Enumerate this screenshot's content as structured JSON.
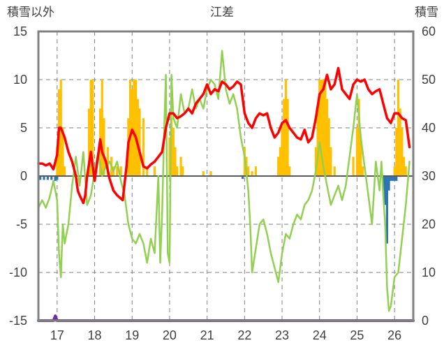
{
  "chart_data": {
    "type": "line",
    "title": "江差",
    "y_left_label": "積雪以外",
    "y_right_label": "積雪",
    "x_tick_labels": [
      "17",
      "18",
      "19",
      "20",
      "21",
      "22",
      "23",
      "24",
      "25",
      "26"
    ],
    "x_range": [
      16.5,
      26.5
    ],
    "y_left_ticks": [
      "15",
      "10",
      "5",
      "0",
      "-5",
      "-10",
      "-15"
    ],
    "y_left_range": [
      -15,
      15
    ],
    "y_right_ticks": [
      "60",
      "50",
      "40",
      "30",
      "20",
      "10",
      "0"
    ],
    "y_right_range": [
      0,
      60
    ],
    "grid": "dashed-horizontal-and-vertical",
    "colors": {
      "red_series": "#ff0000",
      "green_series": "#92d050",
      "orange_bars": "#ffc000",
      "blue_bars": "#2e75b6",
      "purple_series": "#7030a0",
      "frame": "#808080",
      "grid": "#808080"
    },
    "series": [
      {
        "color": "#ff0000",
        "axis": "left",
        "points": [
          [
            16.5,
            1.3
          ],
          [
            16.6,
            1.3
          ],
          [
            16.7,
            1.1
          ],
          [
            16.8,
            1.3
          ],
          [
            16.9,
            0.7
          ],
          [
            17.0,
            2.2
          ],
          [
            17.05,
            5.0
          ],
          [
            17.1,
            5.0
          ],
          [
            17.2,
            4.0
          ],
          [
            17.3,
            2.5
          ],
          [
            17.4,
            1.5
          ],
          [
            17.5,
            0.0
          ],
          [
            17.55,
            -1.5
          ],
          [
            17.6,
            -2.0
          ],
          [
            17.7,
            -2.8
          ],
          [
            17.75,
            -2.0
          ],
          [
            17.8,
            0.0
          ],
          [
            17.9,
            2.5
          ],
          [
            18.0,
            -0.5
          ],
          [
            18.15,
            3.8
          ],
          [
            18.2,
            2.5
          ],
          [
            18.3,
            1.5
          ],
          [
            18.4,
            -0.3
          ],
          [
            18.5,
            -1.5
          ],
          [
            18.6,
            -2.0
          ],
          [
            18.75,
            -2.5
          ],
          [
            18.85,
            1.0
          ],
          [
            18.9,
            3.5
          ],
          [
            19.0,
            4.8
          ],
          [
            19.1,
            4.0
          ],
          [
            19.2,
            2.5
          ],
          [
            19.3,
            1.0
          ],
          [
            19.4,
            0.8
          ],
          [
            19.5,
            1.2
          ],
          [
            19.6,
            1.5
          ],
          [
            19.8,
            2.5
          ],
          [
            19.9,
            5.0
          ],
          [
            20.0,
            6.5
          ],
          [
            20.1,
            6.5
          ],
          [
            20.2,
            6.0
          ],
          [
            20.3,
            6.2
          ],
          [
            20.4,
            6.5
          ],
          [
            20.5,
            7.0
          ],
          [
            20.6,
            6.5
          ],
          [
            20.7,
            7.5
          ],
          [
            20.8,
            8.0
          ],
          [
            20.9,
            8.5
          ],
          [
            21.0,
            9.5
          ],
          [
            21.1,
            8.5
          ],
          [
            21.2,
            9.0
          ],
          [
            21.3,
            8.8
          ],
          [
            21.4,
            9.8
          ],
          [
            21.5,
            9.5
          ],
          [
            21.6,
            9.0
          ],
          [
            21.7,
            9.3
          ],
          [
            21.8,
            9.8
          ],
          [
            21.9,
            9.5
          ],
          [
            22.0,
            6.5
          ],
          [
            22.1,
            5.5
          ],
          [
            22.2,
            5.0
          ],
          [
            22.3,
            6.0
          ],
          [
            22.4,
            6.5
          ],
          [
            22.5,
            6.3
          ],
          [
            22.6,
            6.5
          ],
          [
            22.7,
            5.0
          ],
          [
            22.8,
            4.0
          ],
          [
            22.9,
            4.5
          ],
          [
            23.0,
            5.5
          ],
          [
            23.1,
            5.8
          ],
          [
            23.2,
            5.0
          ],
          [
            23.3,
            4.5
          ],
          [
            23.4,
            4.0
          ],
          [
            23.5,
            3.8
          ],
          [
            23.6,
            4.8
          ],
          [
            23.7,
            3.5
          ],
          [
            23.8,
            4.0
          ],
          [
            23.9,
            6.0
          ],
          [
            24.0,
            8.5
          ],
          [
            24.1,
            9.0
          ],
          [
            24.2,
            10.5
          ],
          [
            24.3,
            9.0
          ],
          [
            24.4,
            9.5
          ],
          [
            24.5,
            11.2
          ],
          [
            24.6,
            9.0
          ],
          [
            24.7,
            8.5
          ],
          [
            24.8,
            8.0
          ],
          [
            24.9,
            9.5
          ],
          [
            25.0,
            10.0
          ],
          [
            25.1,
            9.8
          ],
          [
            25.2,
            10.0
          ],
          [
            25.3,
            9.0
          ],
          [
            25.4,
            8.5
          ],
          [
            25.5,
            8.8
          ],
          [
            25.6,
            9.0
          ],
          [
            25.7,
            7.5
          ],
          [
            25.8,
            6.0
          ],
          [
            25.9,
            5.5
          ],
          [
            26.0,
            6.5
          ],
          [
            26.1,
            6.5
          ],
          [
            26.2,
            6.0
          ],
          [
            26.3,
            5.8
          ],
          [
            26.4,
            3.0
          ]
        ]
      },
      {
        "color": "#92d050",
        "axis": "left",
        "points": [
          [
            16.5,
            -3.3
          ],
          [
            16.6,
            -2.5
          ],
          [
            16.7,
            -3.3
          ],
          [
            16.8,
            -2.2
          ],
          [
            16.9,
            -0.5
          ],
          [
            17.0,
            -2.5
          ],
          [
            17.05,
            -8.0
          ],
          [
            17.1,
            -10.5
          ],
          [
            17.15,
            -5.0
          ],
          [
            17.2,
            -7.0
          ],
          [
            17.3,
            -5.0
          ],
          [
            17.4,
            -1.0
          ],
          [
            17.5,
            2.0
          ],
          [
            17.6,
            -1.0
          ],
          [
            17.7,
            2.5
          ],
          [
            17.8,
            -3.0
          ],
          [
            17.9,
            -2.0
          ],
          [
            18.0,
            0.5
          ],
          [
            18.1,
            2.5
          ],
          [
            18.2,
            0.0
          ],
          [
            18.3,
            1.0
          ],
          [
            18.4,
            1.5
          ],
          [
            18.5,
            0.5
          ],
          [
            18.6,
            1.5
          ],
          [
            18.7,
            -0.5
          ],
          [
            18.8,
            -2.0
          ],
          [
            18.9,
            -5.0
          ],
          [
            19.0,
            -6.5
          ],
          [
            19.1,
            -7.0
          ],
          [
            19.2,
            -6.0
          ],
          [
            19.3,
            -7.0
          ],
          [
            19.4,
            -9.0
          ],
          [
            19.5,
            -6.5
          ],
          [
            19.6,
            -8.0
          ],
          [
            19.7,
            0.0
          ],
          [
            19.75,
            -9.0
          ],
          [
            19.8,
            -4.0
          ],
          [
            19.85,
            4.0
          ],
          [
            19.9,
            10.5
          ],
          [
            19.95,
            -8.0
          ],
          [
            20.0,
            -9.0
          ],
          [
            20.05,
            10.5
          ],
          [
            20.1,
            6.0
          ],
          [
            20.2,
            5.0
          ],
          [
            20.3,
            8.5
          ],
          [
            20.4,
            6.5
          ],
          [
            20.5,
            7.0
          ],
          [
            20.6,
            9.0
          ],
          [
            20.7,
            7.0
          ],
          [
            20.8,
            8.0
          ],
          [
            20.9,
            7.0
          ],
          [
            21.0,
            9.0
          ],
          [
            21.1,
            10.0
          ],
          [
            21.2,
            9.5
          ],
          [
            21.3,
            8.0
          ],
          [
            21.4,
            13.0
          ],
          [
            21.5,
            9.0
          ],
          [
            21.6,
            7.5
          ],
          [
            21.7,
            8.5
          ],
          [
            21.8,
            7.0
          ],
          [
            21.9,
            4.0
          ],
          [
            22.0,
            2.0
          ],
          [
            22.1,
            -1.5
          ],
          [
            22.15,
            -5.0
          ],
          [
            22.2,
            -10.0
          ],
          [
            22.3,
            -7.5
          ],
          [
            22.4,
            -5.0
          ],
          [
            22.5,
            -4.5
          ],
          [
            22.6,
            -6.0
          ],
          [
            22.7,
            -8.0
          ],
          [
            22.8,
            -9.5
          ],
          [
            22.9,
            -11.0
          ],
          [
            23.0,
            -8.0
          ],
          [
            23.1,
            -6.0
          ],
          [
            23.2,
            -6.5
          ],
          [
            23.3,
            -5.0
          ],
          [
            23.4,
            -4.0
          ],
          [
            23.5,
            -4.5
          ],
          [
            23.6,
            -3.0
          ],
          [
            23.7,
            -2.5
          ],
          [
            23.8,
            -1.5
          ],
          [
            23.9,
            0.5
          ],
          [
            24.0,
            3.5
          ],
          [
            24.1,
            1.0
          ],
          [
            24.2,
            -1.0
          ],
          [
            24.3,
            -3.0
          ],
          [
            24.4,
            -2.0
          ],
          [
            24.5,
            -1.0
          ],
          [
            24.6,
            -2.5
          ],
          [
            24.7,
            -1.0
          ],
          [
            24.8,
            2.0
          ],
          [
            24.9,
            5.0
          ],
          [
            25.0,
            8.5
          ],
          [
            25.1,
            4.0
          ],
          [
            25.2,
            1.0
          ],
          [
            25.3,
            -2.0
          ],
          [
            25.4,
            -5.0
          ],
          [
            25.5,
            1.5
          ],
          [
            25.6,
            -1.5
          ],
          [
            25.65,
            1.5
          ],
          [
            25.7,
            -2.0
          ],
          [
            25.75,
            -5.0
          ],
          [
            25.8,
            -11.5
          ],
          [
            25.85,
            -14.0
          ],
          [
            25.9,
            -13.5
          ],
          [
            26.0,
            -10.5
          ],
          [
            26.1,
            -10.0
          ],
          [
            26.2,
            -6.5
          ],
          [
            26.3,
            -3.0
          ],
          [
            26.4,
            1.5
          ]
        ]
      },
      {
        "color": "#7030a0",
        "axis": "left",
        "points": [
          [
            16.5,
            -15.0
          ],
          [
            16.9,
            -15.0
          ],
          [
            16.95,
            -14.5
          ],
          [
            17.0,
            -15.0
          ],
          [
            26.5,
            -15.0
          ]
        ]
      }
    ],
    "orange_bars_right_axis": [
      [
        17.0,
        36
      ],
      [
        17.05,
        48
      ],
      [
        17.1,
        50
      ],
      [
        17.15,
        40
      ],
      [
        17.2,
        32
      ],
      [
        17.25,
        30
      ],
      [
        17.85,
        44
      ],
      [
        17.9,
        50
      ],
      [
        17.95,
        50
      ],
      [
        18.0,
        32
      ],
      [
        18.15,
        44
      ],
      [
        18.2,
        50
      ],
      [
        18.25,
        42
      ],
      [
        18.35,
        36
      ],
      [
        18.45,
        34
      ],
      [
        18.5,
        32
      ],
      [
        18.6,
        32
      ],
      [
        18.7,
        32
      ],
      [
        18.85,
        30
      ],
      [
        18.9,
        42
      ],
      [
        18.95,
        50
      ],
      [
        19.0,
        48
      ],
      [
        19.05,
        50
      ],
      [
        19.1,
        50
      ],
      [
        19.15,
        46
      ],
      [
        19.2,
        44
      ],
      [
        19.3,
        42
      ],
      [
        19.4,
        32
      ],
      [
        19.5,
        30
      ],
      [
        19.6,
        32
      ],
      [
        19.7,
        30
      ],
      [
        19.9,
        30
      ],
      [
        20.0,
        38
      ],
      [
        20.05,
        42
      ],
      [
        20.1,
        40
      ],
      [
        20.15,
        36
      ],
      [
        20.2,
        32
      ],
      [
        20.3,
        34
      ],
      [
        20.35,
        32
      ],
      [
        20.45,
        30
      ],
      [
        20.5,
        30
      ],
      [
        20.6,
        30
      ],
      [
        20.9,
        31
      ],
      [
        21.1,
        31
      ],
      [
        21.15,
        30
      ],
      [
        22.0,
        36
      ],
      [
        22.05,
        34
      ],
      [
        22.1,
        32
      ],
      [
        22.2,
        31
      ],
      [
        22.3,
        32
      ],
      [
        22.9,
        34
      ],
      [
        22.95,
        36
      ],
      [
        23.0,
        40
      ],
      [
        23.05,
        46
      ],
      [
        23.1,
        50
      ],
      [
        23.15,
        46
      ],
      [
        23.2,
        32
      ],
      [
        23.3,
        30
      ],
      [
        23.85,
        30
      ],
      [
        23.9,
        36
      ],
      [
        23.95,
        44
      ],
      [
        24.0,
        50
      ],
      [
        24.05,
        50
      ],
      [
        24.1,
        50
      ],
      [
        24.15,
        50
      ],
      [
        24.2,
        46
      ],
      [
        24.25,
        42
      ],
      [
        24.3,
        36
      ],
      [
        24.4,
        32
      ],
      [
        24.5,
        30
      ],
      [
        24.6,
        30
      ],
      [
        24.8,
        30
      ],
      [
        24.9,
        34
      ],
      [
        25.0,
        40
      ],
      [
        25.05,
        46
      ],
      [
        25.1,
        38
      ],
      [
        25.15,
        32
      ],
      [
        25.3,
        30
      ],
      [
        26.0,
        32
      ],
      [
        26.05,
        40
      ],
      [
        26.1,
        50
      ],
      [
        26.15,
        44
      ],
      [
        26.2,
        40
      ],
      [
        26.25,
        34
      ],
      [
        26.3,
        32
      ]
    ],
    "blue_bars_left_axis": [
      [
        16.55,
        -0.4
      ],
      [
        16.65,
        -0.4
      ],
      [
        16.75,
        -0.4
      ],
      [
        16.85,
        -0.4
      ],
      [
        16.95,
        -0.5
      ],
      [
        17.0,
        -0.4
      ],
      [
        21.95,
        -0.3
      ],
      [
        25.7,
        -1.5
      ],
      [
        25.75,
        -3.0
      ],
      [
        25.8,
        -7.0
      ],
      [
        25.85,
        -1.5
      ],
      [
        25.9,
        -0.5
      ],
      [
        25.95,
        -0.5
      ],
      [
        26.0,
        -0.5
      ],
      [
        26.05,
        -0.5
      ]
    ]
  }
}
